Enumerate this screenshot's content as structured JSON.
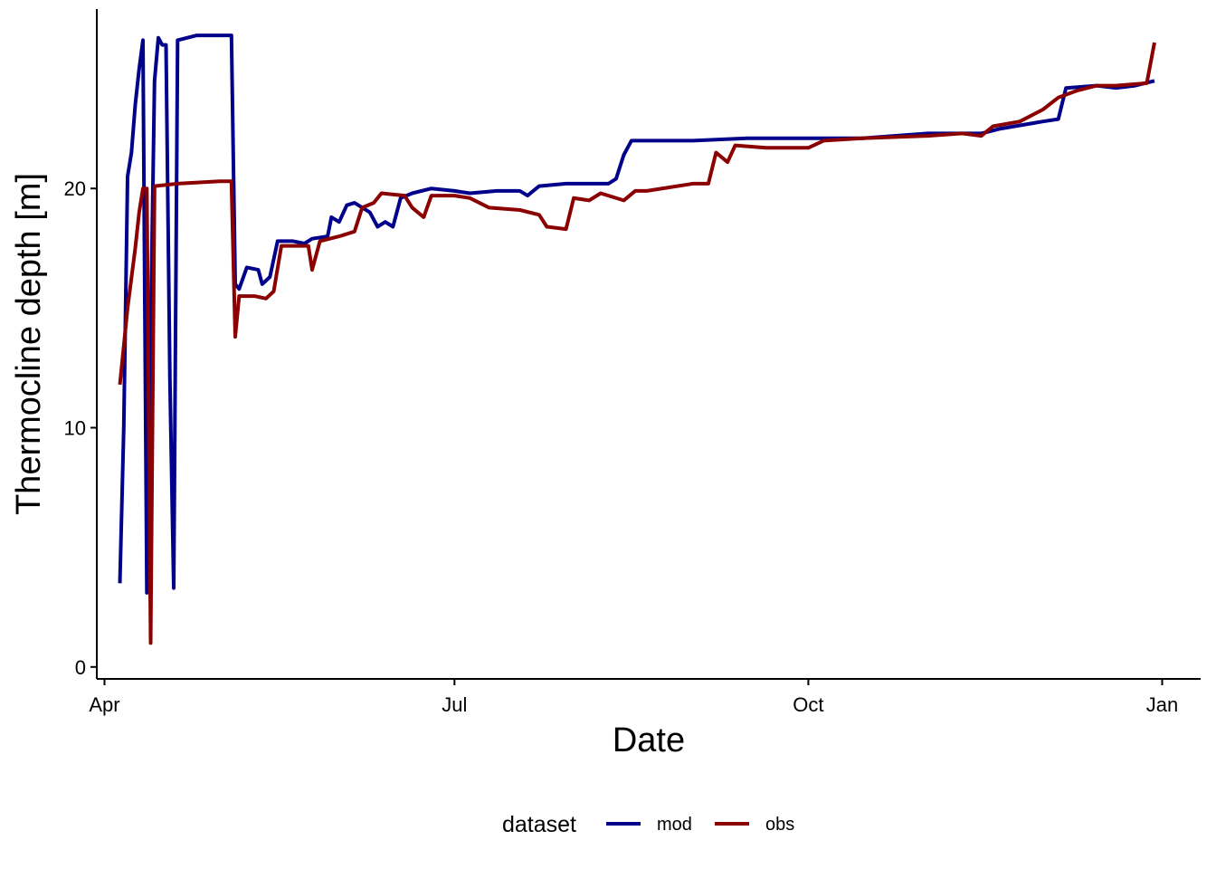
{
  "chart_data": {
    "type": "line",
    "title": "",
    "xlabel": "Date",
    "ylabel": "Thermocline depth [m]",
    "x_type": "date",
    "xlim": [
      "2024-03-30",
      "2025-01-11"
    ],
    "ylim": [
      -0.5,
      27.5
    ],
    "x_ticks": [
      {
        "label": "Apr",
        "date": "2024-04-01"
      },
      {
        "label": "Jul",
        "date": "2024-07-01"
      },
      {
        "label": "Oct",
        "date": "2024-10-01"
      },
      {
        "label": "Jan",
        "date": "2025-01-01"
      }
    ],
    "y_ticks": [
      {
        "label": "0",
        "value": 0
      },
      {
        "label": "10",
        "value": 10
      },
      {
        "label": "20",
        "value": 20
      }
    ],
    "grid": false,
    "legend": {
      "title": "dataset",
      "position": "bottom",
      "entries": [
        {
          "name": "mod",
          "color": "#00008B"
        },
        {
          "name": "obs",
          "color": "#8B0000"
        }
      ]
    },
    "series": [
      {
        "name": "mod",
        "color": "#00008B",
        "points": [
          [
            "2024-04-05",
            3.5
          ],
          [
            "2024-04-06",
            10
          ],
          [
            "2024-04-07",
            20.5
          ],
          [
            "2024-04-08",
            21.5
          ],
          [
            "2024-04-09",
            23.5
          ],
          [
            "2024-04-10",
            25
          ],
          [
            "2024-04-11",
            26.2
          ],
          [
            "2024-04-12",
            3.1
          ],
          [
            "2024-04-13",
            14
          ],
          [
            "2024-04-14",
            24.5
          ],
          [
            "2024-04-15",
            26.3
          ],
          [
            "2024-04-16",
            26
          ],
          [
            "2024-04-17",
            26
          ],
          [
            "2024-04-18",
            12
          ],
          [
            "2024-04-19",
            3.3
          ],
          [
            "2024-04-20",
            26.2
          ],
          [
            "2024-04-25",
            26.4
          ],
          [
            "2024-05-01",
            26.4
          ],
          [
            "2024-05-04",
            26.4
          ],
          [
            "2024-05-05",
            16
          ],
          [
            "2024-05-06",
            15.8
          ],
          [
            "2024-05-08",
            16.7
          ],
          [
            "2024-05-11",
            16.6
          ],
          [
            "2024-05-12",
            16
          ],
          [
            "2024-05-14",
            16.3
          ],
          [
            "2024-05-16",
            17.8
          ],
          [
            "2024-05-20",
            17.8
          ],
          [
            "2024-05-23",
            17.7
          ],
          [
            "2024-05-25",
            17.9
          ],
          [
            "2024-05-29",
            18
          ],
          [
            "2024-05-30",
            18.8
          ],
          [
            "2024-06-01",
            18.6
          ],
          [
            "2024-06-03",
            19.3
          ],
          [
            "2024-06-05",
            19.4
          ],
          [
            "2024-06-09",
            19
          ],
          [
            "2024-06-11",
            18.4
          ],
          [
            "2024-06-13",
            18.6
          ],
          [
            "2024-06-15",
            18.4
          ],
          [
            "2024-06-17",
            19.6
          ],
          [
            "2024-06-20",
            19.8
          ],
          [
            "2024-06-25",
            20
          ],
          [
            "2024-07-01",
            19.9
          ],
          [
            "2024-07-05",
            19.8
          ],
          [
            "2024-07-12",
            19.9
          ],
          [
            "2024-07-18",
            19.9
          ],
          [
            "2024-07-20",
            19.7
          ],
          [
            "2024-07-23",
            20.1
          ],
          [
            "2024-07-30",
            20.2
          ],
          [
            "2024-08-05",
            20.2
          ],
          [
            "2024-08-10",
            20.2
          ],
          [
            "2024-08-12",
            20.4
          ],
          [
            "2024-08-14",
            21.4
          ],
          [
            "2024-08-16",
            22.0
          ],
          [
            "2024-08-20",
            22.0
          ],
          [
            "2024-09-01",
            22.0
          ],
          [
            "2024-09-15",
            22.1
          ],
          [
            "2024-10-01",
            22.1
          ],
          [
            "2024-10-15",
            22.1
          ],
          [
            "2024-11-01",
            22.3
          ],
          [
            "2024-11-15",
            22.3
          ],
          [
            "2024-11-20",
            22.5
          ],
          [
            "2024-12-01",
            22.8
          ],
          [
            "2024-12-05",
            22.9
          ],
          [
            "2024-12-07",
            24.2
          ],
          [
            "2024-12-15",
            24.3
          ],
          [
            "2024-12-20",
            24.2
          ],
          [
            "2024-12-25",
            24.3
          ],
          [
            "2024-12-30",
            24.5
          ]
        ]
      },
      {
        "name": "obs",
        "color": "#8B0000",
        "points": [
          [
            "2024-04-05",
            11.8
          ],
          [
            "2024-04-07",
            15
          ],
          [
            "2024-04-09",
            17.5
          ],
          [
            "2024-04-10",
            19
          ],
          [
            "2024-04-11",
            20
          ],
          [
            "2024-04-12",
            20
          ],
          [
            "2024-04-13",
            1
          ],
          [
            "2024-04-14",
            20.1
          ],
          [
            "2024-04-20",
            20.2
          ],
          [
            "2024-05-01",
            20.3
          ],
          [
            "2024-05-04",
            20.3
          ],
          [
            "2024-05-05",
            13.8
          ],
          [
            "2024-05-06",
            15.5
          ],
          [
            "2024-05-10",
            15.5
          ],
          [
            "2024-05-13",
            15.4
          ],
          [
            "2024-05-15",
            15.7
          ],
          [
            "2024-05-17",
            17.6
          ],
          [
            "2024-05-24",
            17.6
          ],
          [
            "2024-05-25",
            16.6
          ],
          [
            "2024-05-27",
            17.8
          ],
          [
            "2024-06-01",
            18
          ],
          [
            "2024-06-05",
            18.2
          ],
          [
            "2024-06-07",
            19.2
          ],
          [
            "2024-06-10",
            19.4
          ],
          [
            "2024-06-12",
            19.8
          ],
          [
            "2024-06-18",
            19.7
          ],
          [
            "2024-06-20",
            19.2
          ],
          [
            "2024-06-23",
            18.8
          ],
          [
            "2024-06-25",
            19.7
          ],
          [
            "2024-07-01",
            19.7
          ],
          [
            "2024-07-05",
            19.6
          ],
          [
            "2024-07-10",
            19.2
          ],
          [
            "2024-07-18",
            19.1
          ],
          [
            "2024-07-23",
            18.9
          ],
          [
            "2024-07-25",
            18.4
          ],
          [
            "2024-07-30",
            18.3
          ],
          [
            "2024-08-01",
            19.6
          ],
          [
            "2024-08-05",
            19.5
          ],
          [
            "2024-08-08",
            19.8
          ],
          [
            "2024-08-14",
            19.5
          ],
          [
            "2024-08-17",
            19.9
          ],
          [
            "2024-08-20",
            19.9
          ],
          [
            "2024-09-01",
            20.2
          ],
          [
            "2024-09-05",
            20.2
          ],
          [
            "2024-09-07",
            21.5
          ],
          [
            "2024-09-10",
            21.1
          ],
          [
            "2024-09-12",
            21.8
          ],
          [
            "2024-09-20",
            21.7
          ],
          [
            "2024-10-01",
            21.7
          ],
          [
            "2024-10-05",
            22.0
          ],
          [
            "2024-10-15",
            22.1
          ],
          [
            "2024-11-01",
            22.2
          ],
          [
            "2024-11-10",
            22.3
          ],
          [
            "2024-11-15",
            22.2
          ],
          [
            "2024-11-18",
            22.6
          ],
          [
            "2024-11-25",
            22.8
          ],
          [
            "2024-12-01",
            23.3
          ],
          [
            "2024-12-05",
            23.8
          ],
          [
            "2024-12-10",
            24.1
          ],
          [
            "2024-12-15",
            24.3
          ],
          [
            "2024-12-20",
            24.3
          ],
          [
            "2024-12-28",
            24.4
          ],
          [
            "2024-12-30",
            26.1
          ]
        ]
      }
    ]
  }
}
